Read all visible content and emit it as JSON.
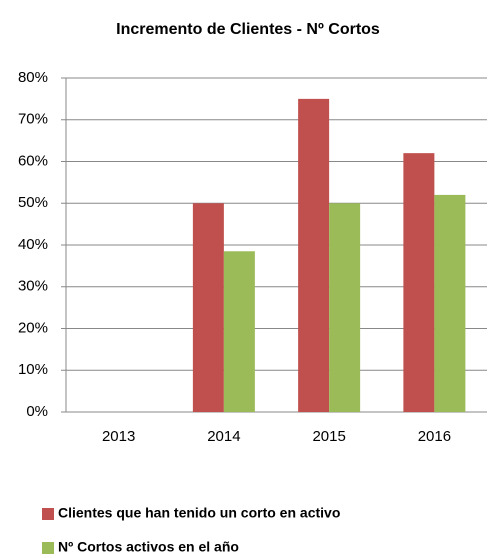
{
  "chart_data": {
    "type": "bar",
    "title": "Incremento de Clientes -  Nº Cortos",
    "categories": [
      "2013",
      "2014",
      "2015",
      "2016"
    ],
    "series": [
      {
        "name": "Clientes que han tenido un corto en activo",
        "color": "#c0504d",
        "values": [
          null,
          50,
          75,
          62
        ]
      },
      {
        "name": "Nº Cortos activos en el año",
        "color": "#9bbb59",
        "values": [
          null,
          38.5,
          50,
          52
        ]
      }
    ],
    "ylim": [
      0,
      80
    ],
    "yticks": [
      {
        "value": 0,
        "label": "0%"
      },
      {
        "value": 10,
        "label": "10%"
      },
      {
        "value": 20,
        "label": "20%"
      },
      {
        "value": 30,
        "label": "30%"
      },
      {
        "value": 40,
        "label": "40%"
      },
      {
        "value": 50,
        "label": "50%"
      },
      {
        "value": 60,
        "label": "60%"
      },
      {
        "value": 70,
        "label": "70%"
      },
      {
        "value": 80,
        "label": "80%"
      }
    ],
    "grid": true
  }
}
